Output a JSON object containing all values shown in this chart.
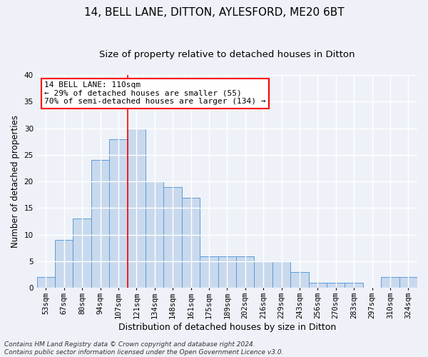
{
  "title1": "14, BELL LANE, DITTON, AYLESFORD, ME20 6BT",
  "title2": "Size of property relative to detached houses in Ditton",
  "xlabel": "Distribution of detached houses by size in Ditton",
  "ylabel": "Number of detached properties",
  "categories": [
    "53sqm",
    "67sqm",
    "80sqm",
    "94sqm",
    "107sqm",
    "121sqm",
    "134sqm",
    "148sqm",
    "161sqm",
    "175sqm",
    "189sqm",
    "202sqm",
    "216sqm",
    "229sqm",
    "243sqm",
    "256sqm",
    "270sqm",
    "283sqm",
    "297sqm",
    "310sqm",
    "324sqm"
  ],
  "values": [
    2,
    9,
    13,
    24,
    28,
    30,
    20,
    19,
    17,
    6,
    6,
    6,
    5,
    5,
    3,
    1,
    1,
    1,
    0,
    2,
    2
  ],
  "bar_color": "#c9d9ed",
  "bar_edge_color": "#5b9bd5",
  "property_line_x": 4.5,
  "annotation_line1": "14 BELL LANE: 110sqm",
  "annotation_line2": "← 29% of detached houses are smaller (55)",
  "annotation_line3": "70% of semi-detached houses are larger (134) →",
  "annotation_box_color": "white",
  "annotation_box_edge_color": "red",
  "vline_color": "red",
  "ylim": [
    0,
    40
  ],
  "yticks": [
    0,
    5,
    10,
    15,
    20,
    25,
    30,
    35,
    40
  ],
  "footer1": "Contains HM Land Registry data © Crown copyright and database right 2024.",
  "footer2": "Contains public sector information licensed under the Open Government Licence v3.0.",
  "bg_color": "#eef2f8",
  "plot_bg_color": "#eef2f8",
  "grid_color": "white",
  "title1_fontsize": 11,
  "title2_fontsize": 9.5,
  "xlabel_fontsize": 9,
  "ylabel_fontsize": 8.5,
  "tick_fontsize": 7.5,
  "annotation_fontsize": 8,
  "footer_fontsize": 6.5
}
